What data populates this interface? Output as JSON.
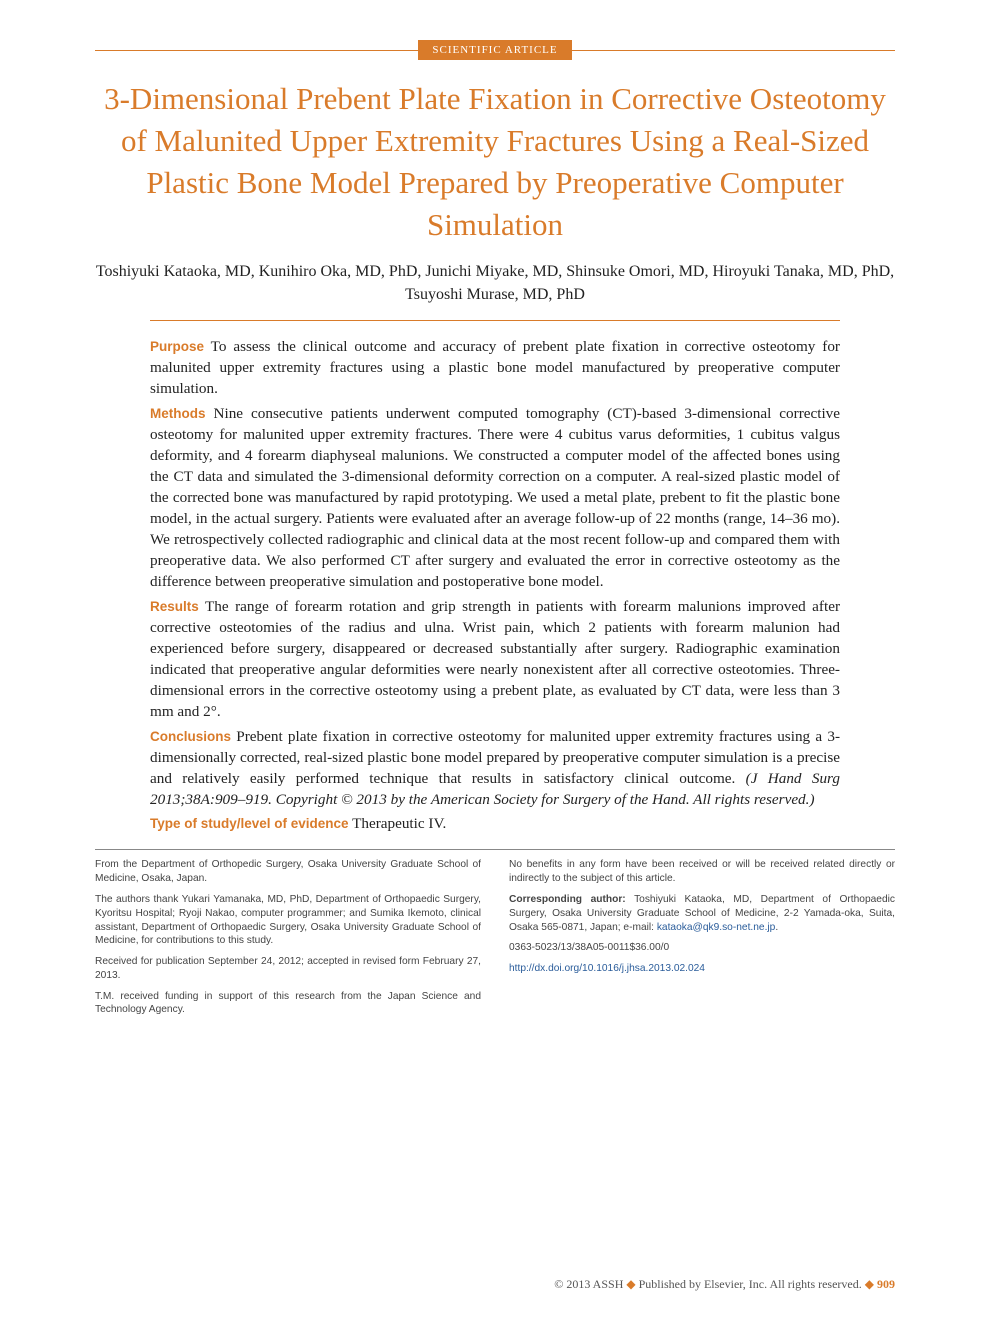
{
  "badge": "SCIENTIFIC ARTICLE",
  "title": "3-Dimensional Prebent Plate Fixation in Corrective Osteotomy of Malunited Upper Extremity Fractures Using a Real-Sized Plastic Bone Model Prepared by Preoperative Computer Simulation",
  "authors": "Toshiyuki Kataoka, MD, Kunihiro Oka, MD, PhD, Junichi Miyake, MD, Shinsuke Omori, MD, Hiroyuki Tanaka, MD, PhD, Tsuyoshi Murase, MD, PhD",
  "abstract": {
    "purpose": {
      "label": "Purpose",
      "text": "To assess the clinical outcome and accuracy of prebent plate fixation in corrective osteotomy for malunited upper extremity fractures using a plastic bone model manufactured by preoperative computer simulation."
    },
    "methods": {
      "label": "Methods",
      "text": "Nine consecutive patients underwent computed tomography (CT)-based 3-dimensional corrective osteotomy for malunited upper extremity fractures. There were 4 cubitus varus deformities, 1 cubitus valgus deformity, and 4 forearm diaphyseal malunions. We constructed a computer model of the affected bones using the CT data and simulated the 3-dimensional deformity correction on a computer. A real-sized plastic model of the corrected bone was manufactured by rapid prototyping. We used a metal plate, prebent to fit the plastic bone model, in the actual surgery. Patients were evaluated after an average follow-up of 22 months (range, 14–36 mo). We retrospectively collected radiographic and clinical data at the most recent follow-up and compared them with preoperative data. We also performed CT after surgery and evaluated the error in corrective osteotomy as the difference between preoperative simulation and postoperative bone model."
    },
    "results": {
      "label": "Results",
      "text": "The range of forearm rotation and grip strength in patients with forearm malunions improved after corrective osteotomies of the radius and ulna. Wrist pain, which 2 patients with forearm malunion had experienced before surgery, disappeared or decreased substantially after surgery. Radiographic examination indicated that preoperative angular deformities were nearly nonexistent after all corrective osteotomies. Three-dimensional errors in the corrective osteotomy using a prebent plate, as evaluated by CT data, were less than 3 mm and 2°."
    },
    "conclusions": {
      "label": "Conclusions",
      "text_main": "Prebent plate fixation in corrective osteotomy for malunited upper extremity fractures using a 3-dimensionally corrected, real-sized plastic bone model prepared by preoperative computer simulation is a precise and relatively easily performed technique that results in satisfactory clinical outcome. ",
      "citation": "(J Hand Surg 2013;38A:909–919. Copyright © 2013 by the American Society for Surgery of the Hand. All rights reserved.)"
    },
    "evidence": {
      "label": "Type of study/level of evidence",
      "text": "Therapeutic IV."
    }
  },
  "footer": {
    "left": {
      "affiliation": "From the Department of Orthopedic Surgery, Osaka University Graduate School of Medicine, Osaka, Japan.",
      "thanks": "The authors thank Yukari Yamanaka, MD, PhD, Department of Orthopaedic Surgery, Kyoritsu Hospital; Ryoji Nakao, computer programmer; and Sumika Ikemoto, clinical assistant, Department of Orthopaedic Surgery, Osaka University Graduate School of Medicine, for contributions to this study.",
      "received": "Received for publication September 24, 2012; accepted in revised form February 27, 2013.",
      "funding": "T.M. received funding in support of this research from the Japan Science and Technology Agency."
    },
    "right": {
      "benefits": "No benefits in any form have been received or will be received related directly or indirectly to the subject of this article.",
      "corresponding_label": "Corresponding author:",
      "corresponding_text": " Toshiyuki Kataoka, MD, Department of Orthopaedic Surgery, Osaka University Graduate School of Medicine, 2-2 Yamada-oka, Suita, Osaka 565-0871, Japan; e-mail: ",
      "email": "kataoka@qk9.so-net.ne.jp",
      "period": ".",
      "issn": "0363-5023/13/38A05-0011$36.00/0",
      "doi": "http://dx.doi.org/10.1016/j.jhsa.2013.02.024"
    }
  },
  "copyright": {
    "symbol": "©",
    "text1": " 2013 ASSH ",
    "diamond1": "◆",
    "text2": " Published by Elsevier, Inc. All rights reserved. ",
    "diamond2": "◆",
    "page": " 909"
  }
}
